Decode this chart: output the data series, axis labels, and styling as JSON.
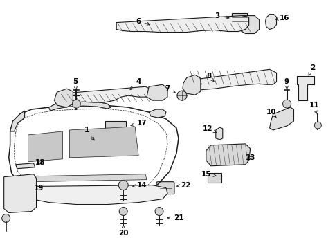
{
  "bg_color": "#ffffff",
  "line_color": "#1a1a1a",
  "label_color": "#000000",
  "fig_width": 4.85,
  "fig_height": 3.57,
  "dpi": 100
}
